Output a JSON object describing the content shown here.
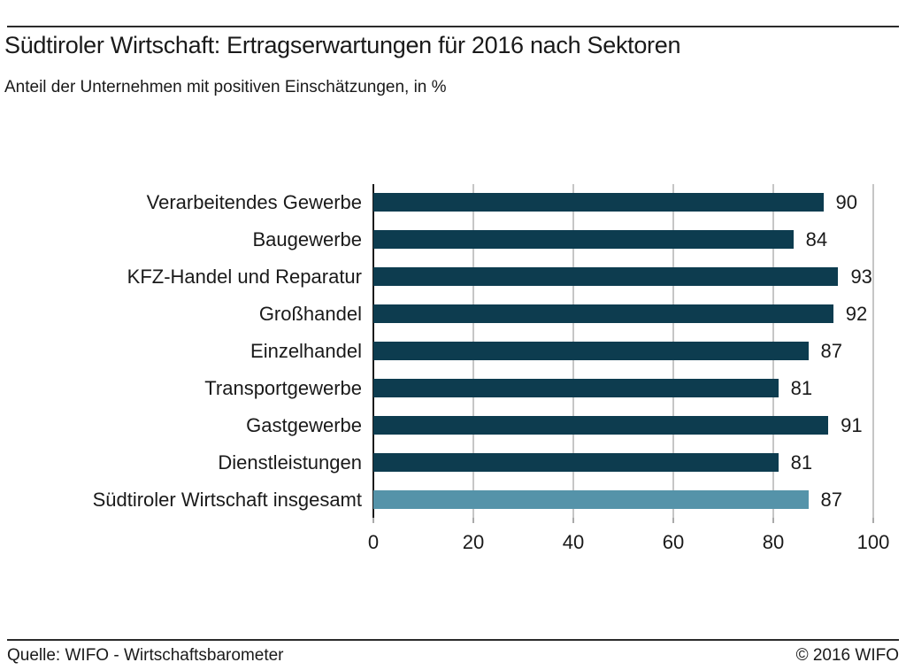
{
  "header": {
    "title": "Südtiroler Wirtschaft: Ertragserwartungen für 2016 nach Sektoren",
    "subtitle": "Anteil der Unternehmen mit positiven Einschätzungen, in %"
  },
  "footer": {
    "source": "Quelle: WIFO - Wirtschaftsbarometer",
    "copyright": "© 2016 WIFO"
  },
  "chart_data": {
    "type": "bar",
    "orientation": "horizontal",
    "title": "Südtiroler Wirtschaft: Ertragserwartungen für 2016 nach Sektoren",
    "subtitle": "Anteil der Unternehmen mit positiven Einschätzungen, in %",
    "categories": [
      "Verarbeitendes Gewerbe",
      "Baugewerbe",
      "KFZ-Handel und Reparatur",
      "Großhandel",
      "Einzelhandel",
      "Transportgewerbe",
      "Gastgewerbe",
      "Dienstleistungen",
      "Südtiroler Wirtschaft insgesamt"
    ],
    "values": [
      90,
      84,
      93,
      92,
      87,
      81,
      91,
      81,
      87
    ],
    "value_labels": [
      "90",
      "84",
      "93",
      "92",
      "87",
      "81",
      "91",
      "81",
      "87"
    ],
    "highlight_index": 8,
    "xlim": [
      0,
      100
    ],
    "xticks": [
      0,
      20,
      40,
      60,
      80,
      100
    ],
    "xtick_labels": [
      "0",
      "20",
      "40",
      "60",
      "80",
      "100"
    ],
    "grid": "vertical-gridlines-behind-bars",
    "legend": "none",
    "colors": {
      "bar": "#0d3c4f",
      "highlight_bar": "#5593a9",
      "gridline": "#8c8c8c",
      "axis_line": "#1a1a1a",
      "text": "#1a1a1a"
    }
  }
}
